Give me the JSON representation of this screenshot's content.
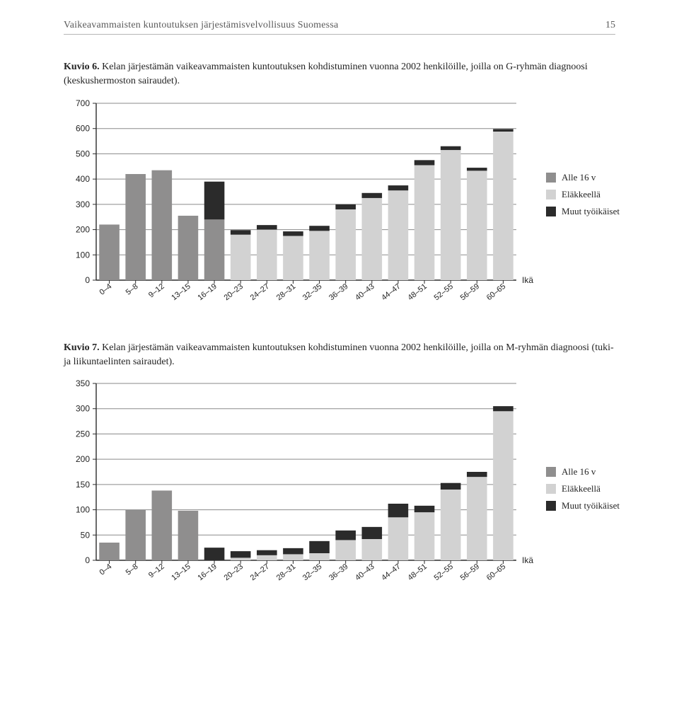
{
  "header": {
    "running_title": "Vaikeavammaisten kuntoutuksen järjestämisvelvollisuus Suomessa",
    "page_number": "15"
  },
  "legend": {
    "items": [
      {
        "label": "Alle 16 v",
        "color": "#8f8e8e"
      },
      {
        "label": "Eläkkeellä",
        "color": "#d2d2d2"
      },
      {
        "label": "Muut työikäiset",
        "color": "#2b2b2b"
      }
    ],
    "age_label": "Ikä"
  },
  "figure6": {
    "caption_label": "Kuvio 6.",
    "caption_text": " Kelan järjestämän vaikeavammaisten kuntoutuksen kohdistuminen vuonna 2002 henkilöille, joilla on G-ryhmän diagnoosi (keskushermoston sairaudet).",
    "chart": {
      "type": "bar-stacked",
      "ylim": [
        0,
        700
      ],
      "ytick_step": 100,
      "categories": [
        "0–4",
        "5–8",
        "9–12",
        "13–15",
        "16–19",
        "20–23",
        "24–27",
        "28–31",
        "32–35",
        "36–39",
        "40–43",
        "44–47",
        "48–51",
        "52–55",
        "56–59",
        "60–65"
      ],
      "series": [
        {
          "name": "under16",
          "color": "#8f8e8e",
          "values": [
            220,
            420,
            435,
            255,
            240,
            0,
            0,
            0,
            0,
            0,
            0,
            0,
            0,
            0,
            0,
            0
          ]
        },
        {
          "name": "pension",
          "color": "#d2d2d2",
          "values": [
            0,
            0,
            0,
            0,
            0,
            180,
            200,
            175,
            195,
            280,
            325,
            355,
            455,
            515,
            433,
            588
          ]
        },
        {
          "name": "working",
          "color": "#2b2b2b",
          "values": [
            0,
            0,
            0,
            0,
            150,
            18,
            18,
            18,
            20,
            20,
            20,
            20,
            20,
            15,
            12,
            10
          ]
        }
      ],
      "grid_color": "#8a8a8a",
      "axis_color": "#2b2b2b",
      "tick_font_size": 12,
      "label_font_size": 11,
      "bar_group_gap": 0.23
    }
  },
  "figure7": {
    "caption_label": "Kuvio 7.",
    "caption_text": " Kelan järjestämän vaikeavammaisten kuntoutuksen kohdistuminen vuonna 2002 henkilöille, joilla on M-ryhmän diagnoosi (tuki- ja liikuntaelinten sairaudet).",
    "chart": {
      "type": "bar-stacked",
      "ylim": [
        0,
        350
      ],
      "ytick_step": 50,
      "categories": [
        "0–4",
        "5–8",
        "9–12",
        "13–15",
        "16–19",
        "20–23",
        "24–27",
        "28–31",
        "32–35",
        "36–39",
        "40–43",
        "44–47",
        "48–51",
        "52–55",
        "56–59",
        "60–65"
      ],
      "series": [
        {
          "name": "under16",
          "color": "#8f8e8e",
          "values": [
            35,
            100,
            138,
            98,
            0,
            0,
            0,
            0,
            0,
            0,
            0,
            0,
            0,
            0,
            0,
            0
          ]
        },
        {
          "name": "pension",
          "color": "#d2d2d2",
          "values": [
            0,
            0,
            0,
            0,
            0,
            5,
            10,
            12,
            14,
            40,
            42,
            85,
            95,
            140,
            165,
            295
          ]
        },
        {
          "name": "working",
          "color": "#2b2b2b",
          "values": [
            0,
            0,
            0,
            0,
            25,
            13,
            10,
            12,
            24,
            19,
            24,
            27,
            13,
            13,
            10,
            10
          ]
        }
      ],
      "grid_color": "#8a8a8a",
      "axis_color": "#2b2b2b",
      "tick_font_size": 12,
      "label_font_size": 11,
      "bar_group_gap": 0.23
    }
  }
}
